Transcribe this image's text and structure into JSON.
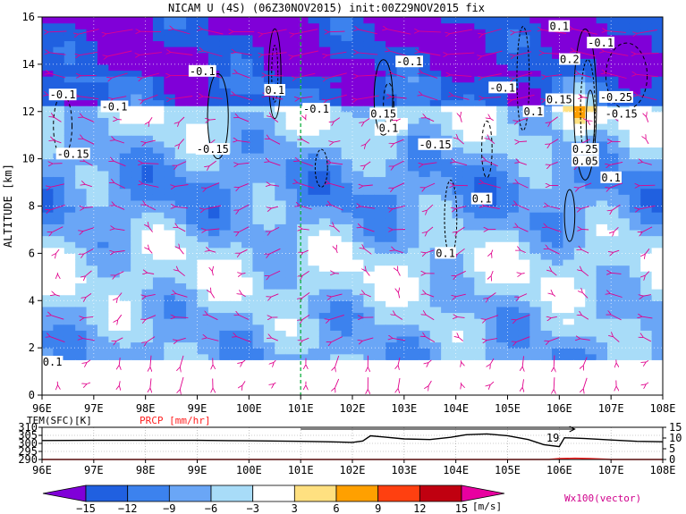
{
  "title": "NICAM U (4S) (06Z30NOV2015) init:00Z29NOV2015 fix",
  "chart_data": [
    {
      "type": "heatmap",
      "panel": "main",
      "ylabel": "ALTITUDE [km]",
      "x_ticks": [
        "96E",
        "97E",
        "98E",
        "99E",
        "100E",
        "101E",
        "102E",
        "103E",
        "104E",
        "105E",
        "106E",
        "107E",
        "108E"
      ],
      "y_ticks": [
        "0",
        "2",
        "4",
        "6",
        "8",
        "10",
        "12",
        "14",
        "16"
      ],
      "xlim": [
        96,
        108
      ],
      "ylim": [
        0,
        16
      ],
      "marker_longitude": 101,
      "contour_labels": [
        {
          "text": "-0.1",
          "lon": 99.1,
          "alt": 13.7
        },
        {
          "text": "-0.1",
          "lon": 96.4,
          "alt": 12.7
        },
        {
          "text": "-0.1",
          "lon": 97.4,
          "alt": 12.2
        },
        {
          "text": "-0.15",
          "lon": 96.6,
          "alt": 10.2
        },
        {
          "text": "-0.15",
          "lon": 99.3,
          "alt": 10.4
        },
        {
          "text": "0.1",
          "lon": 100.5,
          "alt": 12.9
        },
        {
          "text": "-0.1",
          "lon": 101.3,
          "alt": 12.1
        },
        {
          "text": "-0.1",
          "lon": 103.1,
          "alt": 14.1
        },
        {
          "text": "0.15",
          "lon": 102.6,
          "alt": 11.9
        },
        {
          "text": "0.1",
          "lon": 102.7,
          "alt": 11.3
        },
        {
          "text": "-0.15",
          "lon": 103.6,
          "alt": 10.6
        },
        {
          "text": "-0.1",
          "lon": 104.9,
          "alt": 13.0
        },
        {
          "text": "0.1",
          "lon": 105.5,
          "alt": 12.0
        },
        {
          "text": "0.1",
          "lon": 106.0,
          "alt": 15.6
        },
        {
          "text": "0.2",
          "lon": 106.2,
          "alt": 14.2
        },
        {
          "text": "-0.1",
          "lon": 106.8,
          "alt": 14.9
        },
        {
          "text": "0.15",
          "lon": 106.0,
          "alt": 12.5
        },
        {
          "text": "-0.25",
          "lon": 107.1,
          "alt": 12.6
        },
        {
          "text": "-0.15",
          "lon": 107.2,
          "alt": 11.9
        },
        {
          "text": "0.25",
          "lon": 106.5,
          "alt": 10.4
        },
        {
          "text": "0.05",
          "lon": 106.5,
          "alt": 9.9
        },
        {
          "text": "0.1",
          "lon": 107.0,
          "alt": 9.2
        },
        {
          "text": "0.1",
          "lon": 104.5,
          "alt": 8.3
        },
        {
          "text": "0.1",
          "lon": 103.8,
          "alt": 6.0
        },
        {
          "text": "0.1",
          "lon": 96.2,
          "alt": 1.4
        }
      ]
    },
    {
      "type": "line",
      "panel": "surface",
      "left_label": "TEM(SFC)[K]",
      "right_label": "PRCP [mm/hr]",
      "left_ticks": [
        "310",
        "305",
        "300",
        "295",
        "290"
      ],
      "right_ticks": [
        "15",
        "10",
        "5",
        "0"
      ],
      "ylim_left": [
        290,
        310
      ],
      "ylim_right": [
        0,
        15
      ],
      "series": [
        {
          "name": "TEM(SFC)[K]",
          "color": "#000000",
          "x": [
            96,
            97,
            98,
            99,
            100,
            101,
            101.5,
            102,
            102.2,
            102.35,
            102.6,
            103,
            103.5,
            103.9,
            104.2,
            104.6,
            105,
            105.4,
            105.7,
            106,
            106.1,
            106.5,
            107,
            107.5,
            108
          ],
          "y": [
            301.8,
            301.9,
            301.9,
            301.9,
            301.6,
            301.3,
            301.0,
            300.6,
            301.5,
            304.7,
            304.0,
            302.8,
            302.4,
            303.8,
            305.4,
            305.9,
            304.8,
            302.4,
            299.2,
            298.0,
            303.5,
            303.0,
            302.1,
            301.3,
            301.0
          ]
        },
        {
          "name": "PRCP [mm/hr]",
          "color": "#ff2020",
          "x": [
            96,
            105.8,
            106.0,
            106.3,
            106.6,
            107.0,
            108
          ],
          "y": [
            0,
            0,
            0.4,
            0.6,
            0.4,
            0,
            0
          ]
        }
      ],
      "annotation": "19",
      "x_ticks": [
        "96E",
        "97E",
        "98E",
        "99E",
        "100E",
        "101E",
        "102E",
        "103E",
        "104E",
        "105E",
        "106E",
        "107E",
        "108E"
      ]
    },
    {
      "type": "colorbar",
      "panel": "legend",
      "labels": [
        "−15",
        "−12",
        "−9",
        "−6",
        "−3",
        "3",
        "6",
        "9",
        "12",
        "15"
      ],
      "unit": "[m/s]",
      "colors": [
        "#8000d8",
        "#2060e0",
        "#3c82ee",
        "#6aa6f6",
        "#a8dcf8",
        "#ffffff",
        "#ffe080",
        "#ffa000",
        "#ff4010",
        "#c00010",
        "#e800a0"
      ],
      "vector_note": "Wx100(vector)"
    }
  ]
}
